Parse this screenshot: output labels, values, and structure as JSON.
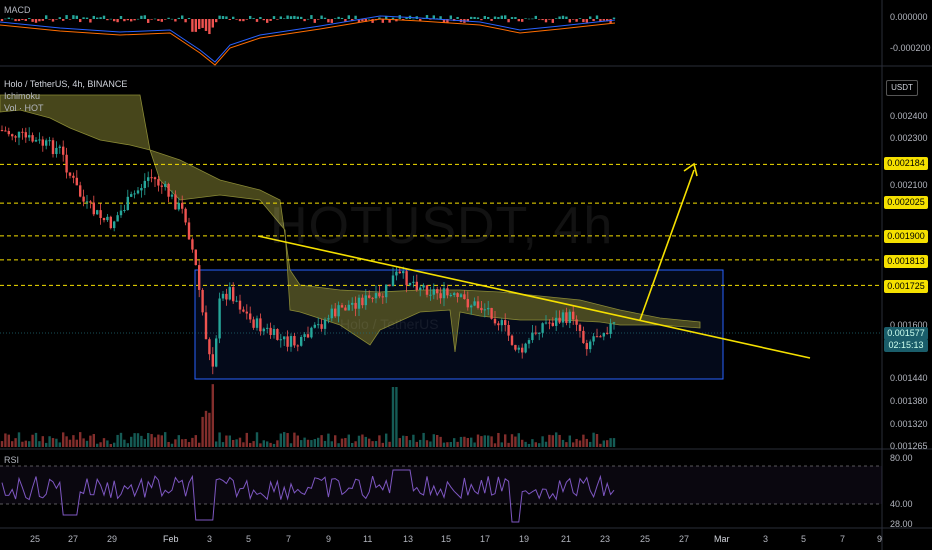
{
  "header": {
    "symbol_line": "Holo / TetherUS, 4h, BINANCE",
    "ind1": "Ichimoku",
    "ind2": "Vol · HOT"
  },
  "macd_panel": {
    "title": "MACD",
    "ticks": [
      "0.000000",
      "-0.000200"
    ]
  },
  "rsi_panel": {
    "title": "RSI",
    "ticks": [
      "80.00",
      "40.00",
      "28.00"
    ]
  },
  "watermark": {
    "main": "HOTUSDT, 4h",
    "sub": "Holo / TetherUS"
  },
  "currency_button": "USDT",
  "price_axis_ticks": [
    "0.002400",
    "0.002300",
    "0.002100",
    "0.001600",
    "0.001440",
    "0.001380",
    "0.001320",
    "0.001265"
  ],
  "price_tags": {
    "levels": [
      "0.002184",
      "0.002025",
      "0.001900",
      "0.001813",
      "0.001725"
    ],
    "current_price": "0.001577",
    "countdown": "02:15:13"
  },
  "x_axis_labels": [
    "25",
    "27",
    "29",
    "Feb",
    "3",
    "5",
    "7",
    "9",
    "11",
    "13",
    "15",
    "17",
    "19",
    "21",
    "23",
    "25",
    "27",
    "Mar",
    "3",
    "5",
    "7",
    "9"
  ],
  "colors": {
    "up": "#26a69a",
    "down": "#ef5350",
    "levels": "#f5e000",
    "trendline": "#f5e000",
    "range_box": "#2962ff",
    "cloud": "#6b6a2a"
  },
  "chart_data": {
    "type": "candlestick",
    "title": "Holo / TetherUS, 4h, BINANCE",
    "yaxis": {
      "scale": "log",
      "ticks": [
        0.0024,
        0.0023,
        0.0021,
        0.0016,
        0.00144,
        0.00138,
        0.00132,
        0.001265
      ]
    },
    "horizontal_levels": [
      0.002184,
      0.002025,
      0.0019,
      0.001813,
      0.001725
    ],
    "trendline": {
      "from": [
        0.00192,
        "4 Feb"
      ],
      "to": [
        0.0015,
        "26 Feb"
      ]
    },
    "range_box": {
      "upper": 0.00176,
      "lower": 0.00145
    },
    "projection_arrow_target": 0.002184,
    "last_price": 0.001577,
    "rsi_levels": [
      80,
      40,
      28
    ]
  }
}
